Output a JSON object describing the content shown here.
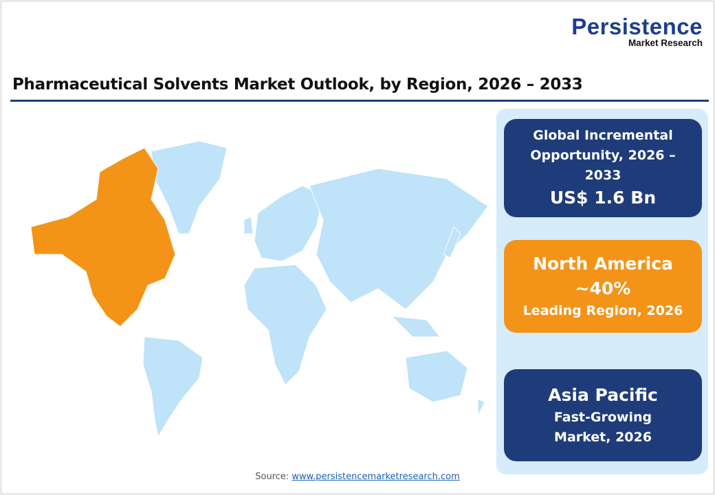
{
  "logo": {
    "main": "Persistence",
    "sub": "Market Research"
  },
  "title": "Pharmaceutical Solvents Market Outlook, by Region, 2026 – 2033",
  "map": {
    "highlighted_region": "North America",
    "highlight_color": "#f39418",
    "base_color": "#bfe3f8"
  },
  "cards": [
    {
      "label": "Global Incremental Opportunity, 2026 – 2033",
      "value": "US$ 1.6 Bn",
      "color": "#1f3c7a"
    },
    {
      "title": "North America",
      "value": "~40%",
      "label": "Leading Region, 2026",
      "color": "#f39418"
    },
    {
      "title": "Asia Pacific",
      "label": "Fast-Growing Market, 2026",
      "color": "#1f3c7a"
    }
  ],
  "source": {
    "prefix": "Source:",
    "link": "www.persistencemarketresearch.com"
  }
}
